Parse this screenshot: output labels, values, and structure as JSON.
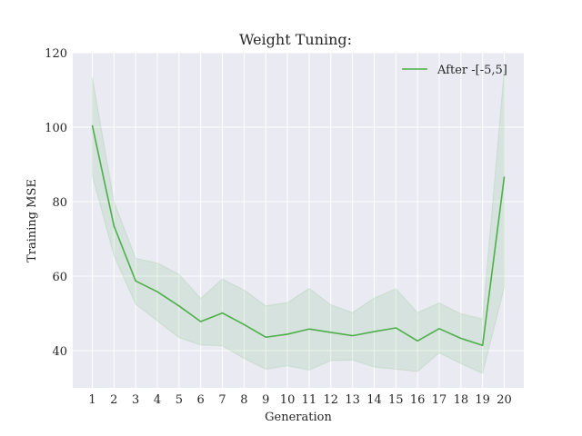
{
  "chart_data": {
    "type": "line",
    "title": "Weight Tuning:",
    "xlabel": "Generation",
    "ylabel": "Training MSE",
    "x": [
      1,
      2,
      3,
      4,
      5,
      6,
      7,
      8,
      9,
      10,
      11,
      12,
      13,
      14,
      15,
      16,
      17,
      18,
      19,
      20
    ],
    "xlim": [
      0.1,
      20.9
    ],
    "ylim": [
      30,
      120
    ],
    "yticks": [
      40,
      60,
      80,
      100,
      120
    ],
    "grid": true,
    "legend_position": "top-right",
    "series": [
      {
        "name": "After -[-5,5]",
        "color": "#4daf4a",
        "values": [
          100.5,
          73.5,
          58.7,
          55.8,
          52.0,
          47.8,
          50.1,
          47.0,
          43.6,
          44.4,
          45.8,
          44.9,
          44.0,
          45.1,
          46.1,
          42.6,
          45.9,
          43.3,
          41.4,
          86.7
        ],
        "upper": [
          113.5,
          80.0,
          64.8,
          63.5,
          60.5,
          54.0,
          59.2,
          56.3,
          52.0,
          52.9,
          56.7,
          52.3,
          50.2,
          54.1,
          56.6,
          50.2,
          52.8,
          49.9,
          48.5,
          115.5
        ],
        "lower": [
          87.0,
          65.5,
          52.5,
          48.0,
          43.5,
          41.5,
          41.3,
          37.9,
          35.0,
          35.9,
          34.8,
          37.3,
          37.5,
          35.6,
          35.0,
          34.4,
          39.4,
          36.5,
          33.9,
          57.0
        ]
      }
    ]
  }
}
